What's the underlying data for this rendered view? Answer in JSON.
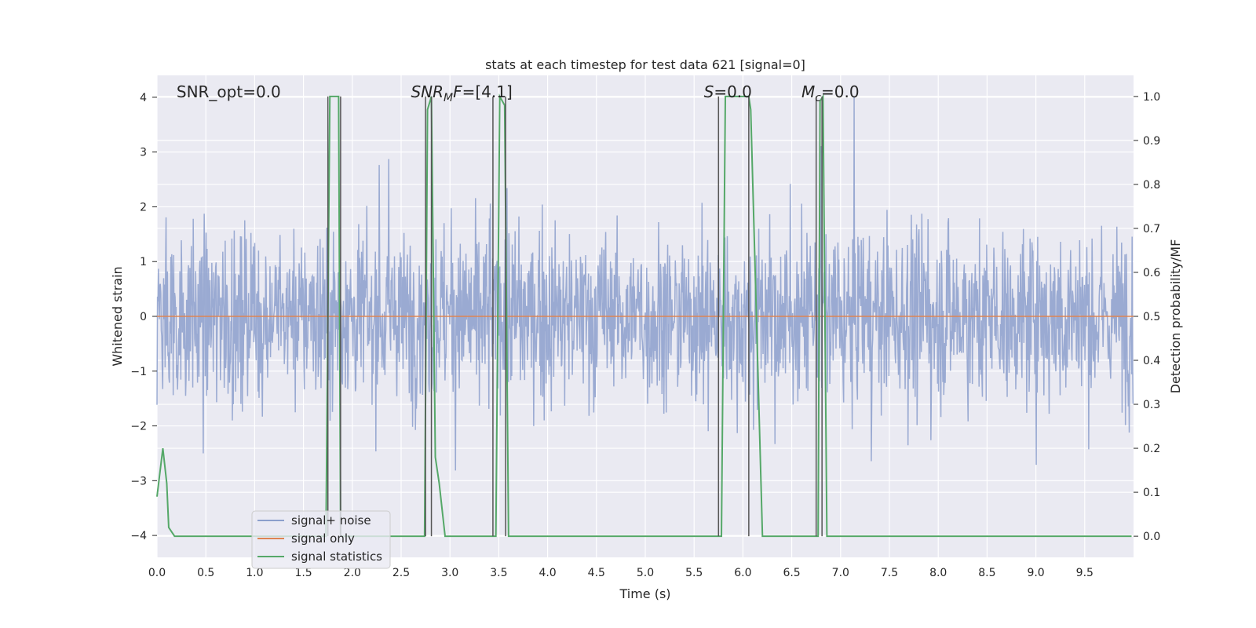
{
  "chart_data": {
    "type": "line",
    "title": "stats at each timestep for test data 621 [signal=0]",
    "xlabel": "Time (s)",
    "ylabel": "Whitened strain",
    "y2label": "Detection probability/MF",
    "xlim": [
      0.0,
      10.0
    ],
    "ylim": [
      -4.4,
      4.4
    ],
    "y2lim": [
      -0.048,
      1.048
    ],
    "xticks": [
      "0.0",
      "0.5",
      "1.0",
      "1.5",
      "2.0",
      "2.5",
      "3.0",
      "3.5",
      "4.0",
      "4.5",
      "5.0",
      "5.5",
      "6.0",
      "6.5",
      "7.0",
      "7.5",
      "8.0",
      "8.5",
      "9.0",
      "9.5"
    ],
    "xtick_values": [
      0.0,
      0.5,
      1.0,
      1.5,
      2.0,
      2.5,
      3.0,
      3.5,
      4.0,
      4.5,
      5.0,
      5.5,
      6.0,
      6.5,
      7.0,
      7.5,
      8.0,
      8.5,
      9.0,
      9.5
    ],
    "yticks": [
      "−4",
      "−3",
      "−2",
      "−1",
      "0",
      "1",
      "2",
      "3",
      "4"
    ],
    "ytick_values": [
      -4,
      -3,
      -2,
      -1,
      0,
      1,
      2,
      3,
      4
    ],
    "y2ticks": [
      "0.0",
      "0.1",
      "0.2",
      "0.3",
      "0.4",
      "0.5",
      "0.6",
      "0.7",
      "0.8",
      "0.9",
      "1.0"
    ],
    "y2tick_values": [
      0.0,
      0.1,
      0.2,
      0.3,
      0.4,
      0.5,
      0.6,
      0.7,
      0.8,
      0.9,
      1.0
    ],
    "annotations": [
      {
        "name": "snr-opt",
        "parts": [
          {
            "t": "SNR_opt=0.0",
            "i": false
          }
        ],
        "x": 0.2
      },
      {
        "name": "snr-mf",
        "parts": [
          {
            "t": "SNR",
            "i": true
          },
          {
            "t": "M",
            "i": true,
            "sub": true
          },
          {
            "t": "F",
            "i": true
          },
          {
            "t": "=[4.1]",
            "i": false
          }
        ],
        "x": 2.6
      },
      {
        "name": "s-value",
        "parts": [
          {
            "t": "S",
            "i": true
          },
          {
            "t": "=0.0",
            "i": false
          }
        ],
        "x": 5.6
      },
      {
        "name": "mc-value",
        "parts": [
          {
            "t": "M",
            "i": true
          },
          {
            "t": "c",
            "i": true,
            "sub": true
          },
          {
            "t": "=0.0",
            "i": false
          }
        ],
        "x": 6.6
      }
    ],
    "vlines": [
      1.75,
      1.88,
      2.75,
      2.81,
      3.44,
      3.57,
      5.75,
      6.06,
      6.75,
      6.81
    ],
    "vline_color": "#555555",
    "series": [
      {
        "name": "signal+ noise",
        "color": "#8c9fcc",
        "axis": "left",
        "description": "noise-dominated strain, spikes mostly within about ±2.5"
      },
      {
        "name": "signal only",
        "color": "#dd8452",
        "axis": "left",
        "x": [
          0.0,
          10.0
        ],
        "y": [
          0.0,
          0.0
        ]
      },
      {
        "name": "signal statistics",
        "color": "#55a868",
        "axis": "right",
        "x": [
          0.0,
          0.06,
          0.1,
          0.12,
          0.18,
          1.73,
          1.77,
          1.81,
          1.86,
          1.88,
          1.94,
          2.74,
          2.77,
          2.81,
          2.85,
          2.89,
          2.95,
          3.43,
          3.47,
          3.51,
          3.56,
          3.6,
          3.64,
          5.74,
          5.78,
          5.82,
          6.04,
          6.06,
          6.08,
          6.2,
          6.74,
          6.77,
          6.79,
          6.82,
          6.86,
          9.98
        ],
        "y": [
          0.09,
          0.2,
          0.12,
          0.02,
          0.0,
          0.0,
          1.0,
          1.0,
          1.0,
          0.0,
          0.0,
          0.0,
          0.97,
          1.0,
          0.18,
          0.12,
          0.0,
          0.0,
          0.0,
          1.0,
          0.98,
          0.0,
          0.0,
          0.0,
          0.0,
          1.0,
          1.0,
          1.0,
          0.97,
          0.0,
          0.0,
          0.0,
          0.99,
          1.0,
          0.0,
          0.0
        ]
      }
    ],
    "legend": {
      "position": "lower-left",
      "entries": [
        "signal+ noise",
        "signal only",
        "signal statistics"
      ]
    }
  }
}
